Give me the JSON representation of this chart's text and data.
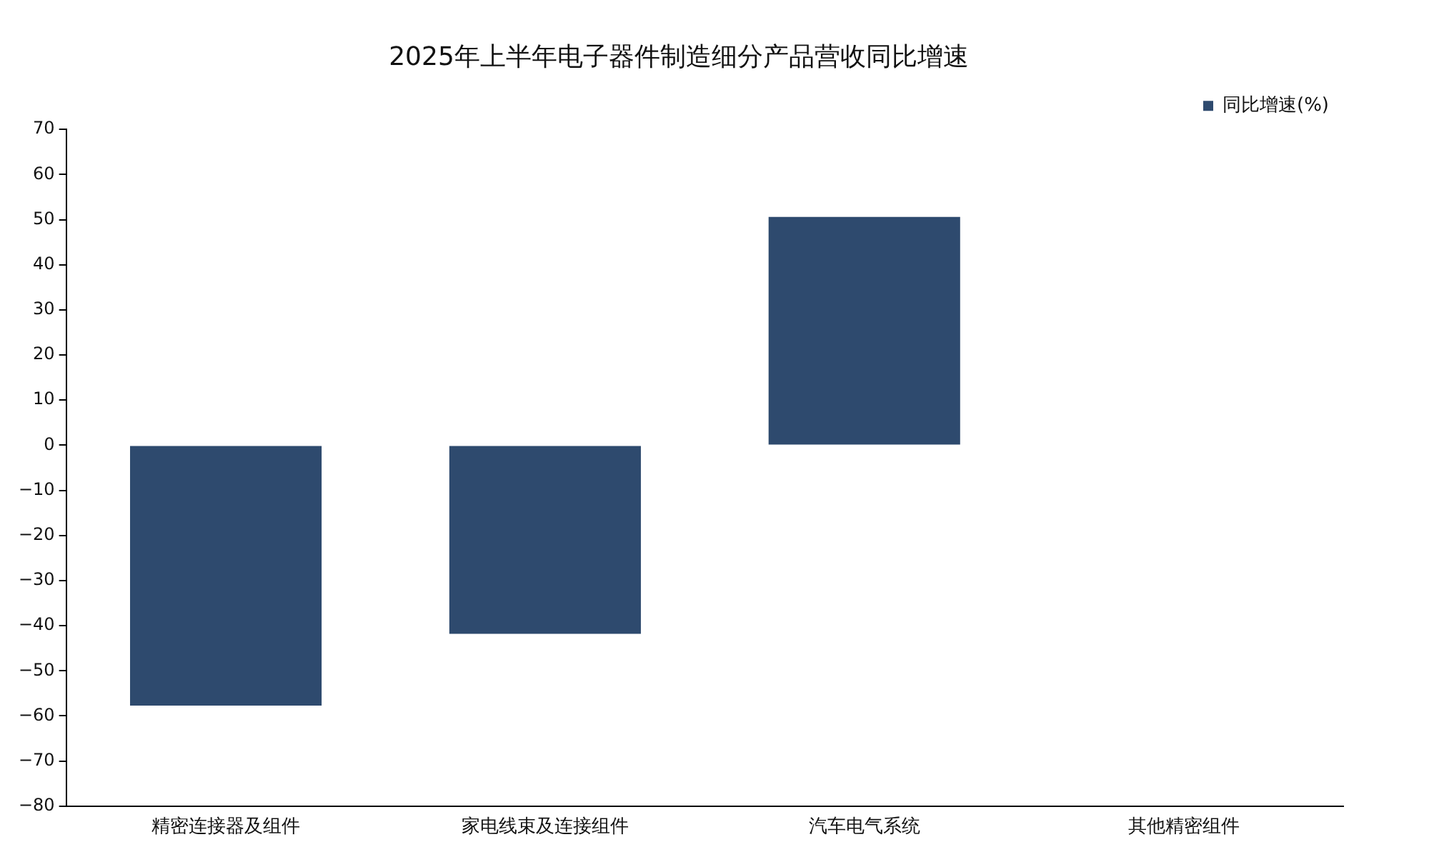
{
  "chart_data": {
    "type": "bar",
    "title": "2025年上半年电子器件制造细分产品营收同比增速",
    "categories": [
      "精密连接器及组件",
      "家电线束及连接组件",
      "汽车电气系统",
      "其他精密组件"
    ],
    "series": [
      {
        "name": "同比增速(%)",
        "color": "#2e4a6e",
        "values": [
          -57.7,
          -41.8,
          50.6,
          null
        ]
      }
    ],
    "ylim": [
      -80,
      70
    ],
    "yticks": [
      -80,
      -70,
      -60,
      -50,
      -40,
      -30,
      -20,
      -10,
      0,
      10,
      20,
      30,
      40,
      50,
      60,
      70
    ],
    "grid": false,
    "legend": "top right"
  }
}
